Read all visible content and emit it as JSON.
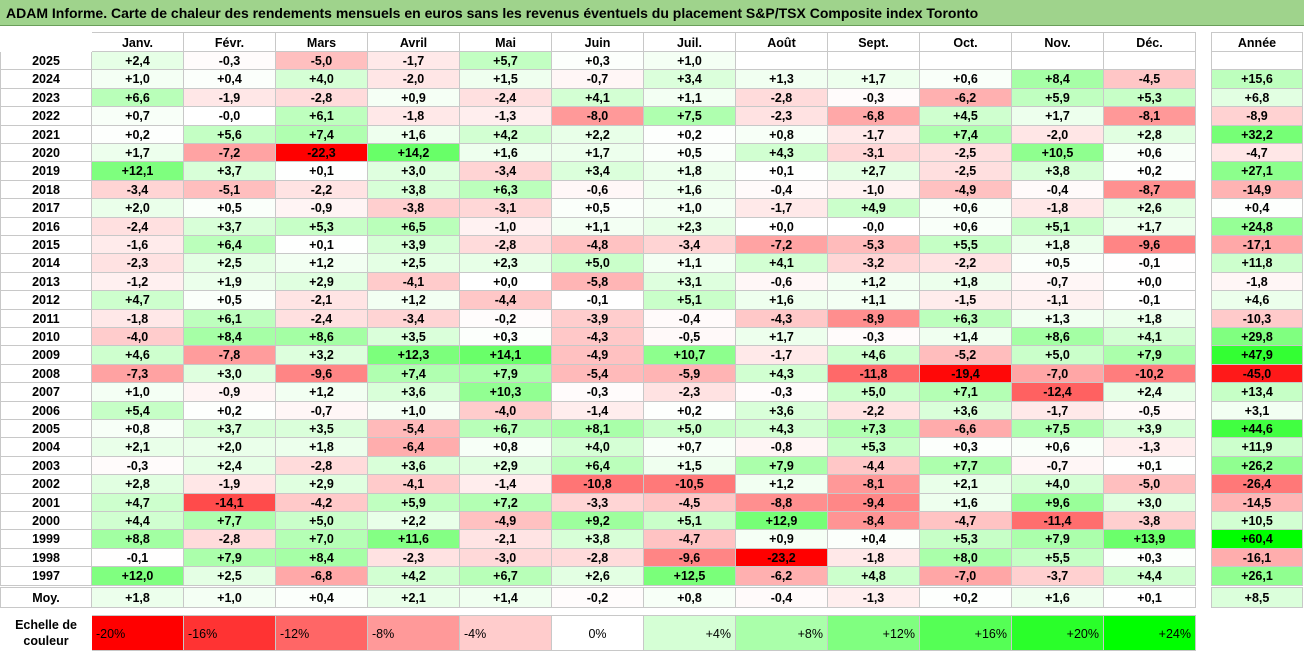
{
  "title": "ADAM Informe. Carte de chaleur des rendements mensuels en euros sans les revenus éventuels du placement S&P/TSX Composite index Toronto",
  "chart_data": {
    "type": "heatmap",
    "columns": [
      "Janv.",
      "Févr.",
      "Mars",
      "Avril",
      "Mai",
      "Juin",
      "Juil.",
      "Août",
      "Sept.",
      "Oct.",
      "Nov.",
      "Déc."
    ],
    "annual_label": "Année",
    "avg_label": "Moy.",
    "rows": [
      {
        "year": "2025",
        "values": [
          "+2,4",
          "-0,3",
          "-5,0",
          "-1,7",
          "+5,7",
          "+0,3",
          "+1,0",
          "",
          "",
          "",
          "",
          ""
        ],
        "annual": ""
      },
      {
        "year": "2024",
        "values": [
          "+1,0",
          "+0,4",
          "+4,0",
          "-2,0",
          "+1,5",
          "-0,7",
          "+3,4",
          "+1,3",
          "+1,7",
          "+0,6",
          "+8,4",
          "-4,5"
        ],
        "annual": "+15,6"
      },
      {
        "year": "2023",
        "values": [
          "+6,6",
          "-1,9",
          "-2,8",
          "+0,9",
          "-2,4",
          "+4,1",
          "+1,1",
          "-2,8",
          "-0,3",
          "-6,2",
          "+5,9",
          "+5,3"
        ],
        "annual": "+6,8"
      },
      {
        "year": "2022",
        "values": [
          "+0,7",
          "-0,0",
          "+6,1",
          "-1,8",
          "-1,3",
          "-8,0",
          "+7,5",
          "-2,3",
          "-6,8",
          "+4,5",
          "+1,7",
          "-8,1"
        ],
        "annual": "-8,9"
      },
      {
        "year": "2021",
        "values": [
          "+0,2",
          "+5,6",
          "+7,4",
          "+1,6",
          "+4,2",
          "+2,2",
          "+0,2",
          "+0,8",
          "-1,7",
          "+7,4",
          "-2,0",
          "+2,8"
        ],
        "annual": "+32,2"
      },
      {
        "year": "2020",
        "values": [
          "+1,7",
          "-7,2",
          "-22,3",
          "+14,2",
          "+1,6",
          "+1,7",
          "+0,5",
          "+4,3",
          "-3,1",
          "-2,5",
          "+10,5",
          "+0,6"
        ],
        "annual": "-4,7"
      },
      {
        "year": "2019",
        "values": [
          "+12,1",
          "+3,7",
          "+0,1",
          "+3,0",
          "-3,4",
          "+3,4",
          "+1,8",
          "+0,1",
          "+2,7",
          "-2,5",
          "+3,8",
          "+0,2"
        ],
        "annual": "+27,1"
      },
      {
        "year": "2018",
        "values": [
          "-3,4",
          "-5,1",
          "-2,2",
          "+3,8",
          "+6,3",
          "-0,6",
          "+1,6",
          "-0,4",
          "-1,0",
          "-4,9",
          "-0,4",
          "-8,7"
        ],
        "annual": "-14,9"
      },
      {
        "year": "2017",
        "values": [
          "+2,0",
          "+0,5",
          "-0,9",
          "-3,8",
          "-3,1",
          "+0,5",
          "+1,0",
          "-1,7",
          "+4,9",
          "+0,6",
          "-1,8",
          "+2,6"
        ],
        "annual": "+0,4"
      },
      {
        "year": "2016",
        "values": [
          "-2,4",
          "+3,7",
          "+5,3",
          "+6,5",
          "-1,0",
          "+1,1",
          "+2,3",
          "+0,0",
          "-0,0",
          "+0,6",
          "+5,1",
          "+1,7"
        ],
        "annual": "+24,8"
      },
      {
        "year": "2015",
        "values": [
          "-1,6",
          "+6,4",
          "+0,1",
          "+3,9",
          "-2,8",
          "-4,8",
          "-3,4",
          "-7,2",
          "-5,3",
          "+5,5",
          "+1,8",
          "-9,6"
        ],
        "annual": "-17,1"
      },
      {
        "year": "2014",
        "values": [
          "-2,3",
          "+2,5",
          "+1,2",
          "+2,5",
          "+2,3",
          "+5,0",
          "+1,1",
          "+4,1",
          "-3,2",
          "-2,2",
          "+0,5",
          "-0,1"
        ],
        "annual": "+11,8"
      },
      {
        "year": "2013",
        "values": [
          "-1,2",
          "+1,9",
          "+2,9",
          "-4,1",
          "+0,0",
          "-5,8",
          "+3,1",
          "-0,6",
          "+1,2",
          "+1,8",
          "-0,7",
          "+0,0"
        ],
        "annual": "-1,8"
      },
      {
        "year": "2012",
        "values": [
          "+4,7",
          "+0,5",
          "-2,1",
          "+1,2",
          "-4,4",
          "-0,1",
          "+5,1",
          "+1,6",
          "+1,1",
          "-1,5",
          "-1,1",
          "-0,1"
        ],
        "annual": "+4,6"
      },
      {
        "year": "2011",
        "values": [
          "-1,8",
          "+6,1",
          "-2,4",
          "-3,4",
          "-0,2",
          "-3,9",
          "-0,4",
          "-4,3",
          "-8,9",
          "+6,3",
          "+1,3",
          "+1,8"
        ],
        "annual": "-10,3"
      },
      {
        "year": "2010",
        "values": [
          "-4,0",
          "+8,4",
          "+8,6",
          "+3,5",
          "+0,3",
          "-4,3",
          "-0,5",
          "+1,7",
          "-0,3",
          "+1,4",
          "+8,6",
          "+4,1"
        ],
        "annual": "+29,8"
      },
      {
        "year": "2009",
        "values": [
          "+4,6",
          "-7,8",
          "+3,2",
          "+12,3",
          "+14,1",
          "-4,9",
          "+10,7",
          "-1,7",
          "+4,6",
          "-5,2",
          "+5,0",
          "+7,9"
        ],
        "annual": "+47,9"
      },
      {
        "year": "2008",
        "values": [
          "-7,3",
          "+3,0",
          "-9,6",
          "+7,4",
          "+7,9",
          "-5,4",
          "-5,9",
          "+4,3",
          "-11,8",
          "-19,4",
          "-7,0",
          "-10,2"
        ],
        "annual": "-45,0"
      },
      {
        "year": "2007",
        "values": [
          "+1,0",
          "-0,9",
          "+1,2",
          "+3,6",
          "+10,3",
          "-0,3",
          "-2,3",
          "-0,3",
          "+5,0",
          "+7,1",
          "-12,4",
          "+2,4"
        ],
        "annual": "+13,4"
      },
      {
        "year": "2006",
        "values": [
          "+5,4",
          "+0,2",
          "-0,7",
          "+1,0",
          "-4,0",
          "-1,4",
          "+0,2",
          "+3,6",
          "-2,2",
          "+3,6",
          "-1,7",
          "-0,5"
        ],
        "annual": "+3,1"
      },
      {
        "year": "2005",
        "values": [
          "+0,8",
          "+3,7",
          "+3,5",
          "-5,4",
          "+6,7",
          "+8,1",
          "+5,0",
          "+4,3",
          "+7,3",
          "-6,6",
          "+7,5",
          "+3,9"
        ],
        "annual": "+44,6"
      },
      {
        "year": "2004",
        "values": [
          "+2,1",
          "+2,0",
          "+1,8",
          "-6,4",
          "+0,8",
          "+4,0",
          "+0,7",
          "-0,8",
          "+5,3",
          "+0,3",
          "+0,6",
          "-1,3"
        ],
        "annual": "+11,9"
      },
      {
        "year": "2003",
        "values": [
          "-0,3",
          "+2,4",
          "-2,8",
          "+3,6",
          "+2,9",
          "+6,4",
          "+1,5",
          "+7,9",
          "-4,4",
          "+7,7",
          "-0,7",
          "+0,1"
        ],
        "annual": "+26,2"
      },
      {
        "year": "2002",
        "values": [
          "+2,8",
          "-1,9",
          "+2,9",
          "-4,1",
          "-1,4",
          "-10,8",
          "-10,5",
          "+1,2",
          "-8,1",
          "+2,1",
          "+4,0",
          "-5,0"
        ],
        "annual": "-26,4"
      },
      {
        "year": "2001",
        "values": [
          "+4,7",
          "-14,1",
          "-4,2",
          "+5,9",
          "+7,2",
          "-3,3",
          "-4,5",
          "-8,8",
          "-9,4",
          "+1,6",
          "+9,6",
          "+3,0"
        ],
        "annual": "-14,5"
      },
      {
        "year": "2000",
        "values": [
          "+4,4",
          "+7,7",
          "+5,0",
          "+2,2",
          "-4,9",
          "+9,2",
          "+5,1",
          "+12,9",
          "-8,4",
          "-4,7",
          "-11,4",
          "-3,8"
        ],
        "annual": "+10,5"
      },
      {
        "year": "1999",
        "values": [
          "+8,8",
          "-2,8",
          "+7,0",
          "+11,6",
          "-2,1",
          "+3,8",
          "-4,7",
          "+0,9",
          "+0,4",
          "+5,3",
          "+7,9",
          "+13,9"
        ],
        "annual": "+60,4"
      },
      {
        "year": "1998",
        "values": [
          "-0,1",
          "+7,9",
          "+8,4",
          "-2,3",
          "-3,0",
          "-2,8",
          "-9,6",
          "-23,2",
          "-1,8",
          "+8,0",
          "+5,5",
          "+0,3"
        ],
        "annual": "-16,1"
      },
      {
        "year": "1997",
        "values": [
          "+12,0",
          "+2,5",
          "-6,8",
          "+4,2",
          "+6,7",
          "+2,6",
          "+12,5",
          "-6,2",
          "+4,8",
          "-7,0",
          "-3,7",
          "+4,4"
        ],
        "annual": "+26,1"
      }
    ],
    "averages": {
      "values": [
        "+1,8",
        "+1,0",
        "+0,4",
        "+2,1",
        "+1,4",
        "-0,2",
        "+0,8",
        "-0,4",
        "-1,3",
        "+0,2",
        "+1,6",
        "+0,1"
      ],
      "annual": "+8,5"
    },
    "scale": {
      "label_line1": "Echelle de",
      "label_line2": "couleur",
      "stops": [
        "-20%",
        "-16%",
        "-12%",
        "-8%",
        "-4%",
        "0%",
        "+4%",
        "+8%",
        "+12%",
        "+16%",
        "+20%",
        "+24%"
      ]
    },
    "colors": {
      "negative": "#ff0000",
      "neutral": "#ffffff",
      "positive": "#00ff00"
    }
  }
}
